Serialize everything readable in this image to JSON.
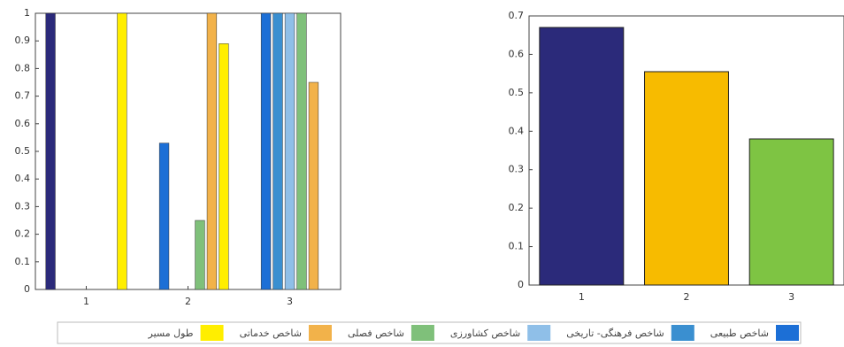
{
  "chart_data": [
    {
      "type": "bar",
      "categories": [
        "1",
        "2",
        "3"
      ],
      "series": [
        {
          "color": "#2b2a7a",
          "values": [
            1,
            0,
            0
          ]
        },
        {
          "name": "شاخص طبیعی",
          "color": "#1c6fd6",
          "values": [
            0,
            0.53,
            1
          ]
        },
        {
          "name": "شاخص فرهنگی- تاریخی",
          "color": "#3a8fd0",
          "values": [
            0,
            0,
            1
          ]
        },
        {
          "name": "شاخص کشاورزی",
          "color": "#8fbfe8",
          "values": [
            0,
            0,
            1
          ]
        },
        {
          "name": "شاخص فصلی",
          "color": "#7fc07a",
          "values": [
            0,
            0.25,
            1
          ]
        },
        {
          "name": "شاخص خدماتی",
          "color": "#f2b24a",
          "values": [
            0,
            1,
            0.75
          ]
        },
        {
          "name": "طول مسیر",
          "color": "#ffee00",
          "values": [
            1,
            0.89,
            0
          ]
        }
      ],
      "ylim": [
        0,
        1
      ],
      "yticks": [
        0,
        0.1,
        0.2,
        0.3,
        0.4,
        0.5,
        0.6,
        0.7,
        0.8,
        0.9,
        1
      ]
    },
    {
      "type": "bar",
      "categories": [
        "1",
        "2",
        "3"
      ],
      "values": [
        0.67,
        0.555,
        0.38
      ],
      "colors": [
        "#2b2a7a",
        "#f7bb00",
        "#7ec443"
      ],
      "ylim": [
        0,
        0.7
      ],
      "yticks": [
        0,
        0.1,
        0.2,
        0.3,
        0.4,
        0.5,
        0.6,
        0.7
      ]
    }
  ]
}
